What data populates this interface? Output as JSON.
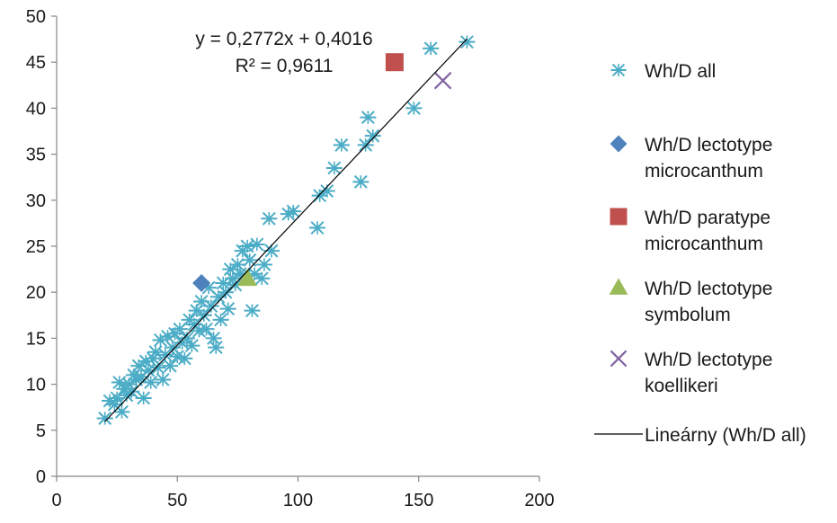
{
  "chart_data": {
    "type": "scatter",
    "title": "",
    "xlabel": "",
    "ylabel": "",
    "xlim": [
      0,
      200
    ],
    "ylim": [
      0,
      50
    ],
    "x_ticks": [
      "0",
      "50",
      "100",
      "150",
      "200"
    ],
    "y_ticks": [
      "0",
      "5",
      "10",
      "15",
      "20",
      "25",
      "30",
      "35",
      "40",
      "45",
      "50"
    ],
    "grid": false,
    "legend_position": "right",
    "series": [
      {
        "name": "Wh/D all",
        "marker": "asterisk",
        "color": "#4bacc6",
        "points": [
          [
            20,
            6.3
          ],
          [
            22,
            8.2
          ],
          [
            24,
            7.8
          ],
          [
            25,
            8.5
          ],
          [
            26,
            10.2
          ],
          [
            27,
            7.0
          ],
          [
            28,
            9.5
          ],
          [
            29,
            8.8
          ],
          [
            30,
            10.0
          ],
          [
            31,
            9.2
          ],
          [
            32,
            11.0
          ],
          [
            33,
            10.5
          ],
          [
            34,
            12.0
          ],
          [
            35,
            10.8
          ],
          [
            36,
            8.5
          ],
          [
            37,
            12.5
          ],
          [
            38,
            11.5
          ],
          [
            39,
            10.2
          ],
          [
            40,
            12.8
          ],
          [
            41,
            13.5
          ],
          [
            42,
            11.8
          ],
          [
            43,
            14.8
          ],
          [
            44,
            10.5
          ],
          [
            45,
            13.2
          ],
          [
            46,
            15.2
          ],
          [
            47,
            12.0
          ],
          [
            48,
            14.0
          ],
          [
            49,
            15.5
          ],
          [
            50,
            13.0
          ],
          [
            51,
            16.0
          ],
          [
            52,
            14.5
          ],
          [
            53,
            12.8
          ],
          [
            54,
            15.0
          ],
          [
            55,
            17.0
          ],
          [
            56,
            14.2
          ],
          [
            57,
            16.5
          ],
          [
            58,
            18.0
          ],
          [
            59,
            15.8
          ],
          [
            60,
            19.0
          ],
          [
            61,
            17.5
          ],
          [
            62,
            16.0
          ],
          [
            63,
            20.5
          ],
          [
            64,
            18.5
          ],
          [
            65,
            15.0
          ],
          [
            66,
            14.0
          ],
          [
            67,
            19.5
          ],
          [
            68,
            17.0
          ],
          [
            69,
            21.0
          ],
          [
            70,
            20.0
          ],
          [
            71,
            18.2
          ],
          [
            72,
            22.5
          ],
          [
            73,
            21.5
          ],
          [
            74,
            20.8
          ],
          [
            75,
            23.0
          ],
          [
            76,
            22.0
          ],
          [
            77,
            24.5
          ],
          [
            78,
            21.8
          ],
          [
            79,
            25.0
          ],
          [
            80,
            23.5
          ],
          [
            81,
            18.0
          ],
          [
            82,
            22.0
          ],
          [
            83,
            25.2
          ],
          [
            85,
            21.5
          ],
          [
            86,
            23.0
          ],
          [
            88,
            28.0
          ],
          [
            89,
            24.5
          ],
          [
            96,
            28.5
          ],
          [
            98,
            28.8
          ],
          [
            108,
            27.0
          ],
          [
            109,
            30.5
          ],
          [
            112,
            31.0
          ],
          [
            115,
            33.5
          ],
          [
            118,
            36.0
          ],
          [
            126,
            32.0
          ],
          [
            128,
            36.0
          ],
          [
            129,
            39.0
          ],
          [
            131,
            37.0
          ],
          [
            148,
            40.0
          ],
          [
            155,
            46.5
          ],
          [
            170,
            47.2
          ]
        ]
      },
      {
        "name": "Wh/D lectotype microcanthum",
        "marker": "diamond",
        "color": "#4f81bd",
        "points": [
          [
            60,
            21
          ]
        ]
      },
      {
        "name": "Wh/D paratype microcanthum",
        "marker": "square",
        "color": "#c0504d",
        "points": [
          [
            140,
            45
          ]
        ]
      },
      {
        "name": "Wh/D lectotype symbolum",
        "marker": "triangle",
        "color": "#9bbb59",
        "points": [
          [
            79,
            21.5
          ]
        ]
      },
      {
        "name": "Wh/D lectotype koellikeri",
        "marker": "x",
        "color": "#8064a2",
        "points": [
          [
            160,
            43
          ]
        ]
      }
    ],
    "trendline": {
      "name": "Lineárny (Wh/D all)",
      "slope": 0.2772,
      "intercept": 0.4016,
      "x_range": [
        20,
        170
      ],
      "color": "#000000",
      "equation_label": "y = 0,2772x + 0,4016",
      "r2_label": "R² = 0,9611"
    }
  },
  "legend": {
    "items": [
      {
        "lines": [
          "Wh/D all"
        ],
        "marker": "asterisk",
        "color": "#4bacc6"
      },
      {
        "lines": [
          "Wh/D lectotype",
          "microcanthum"
        ],
        "marker": "diamond",
        "color": "#4f81bd"
      },
      {
        "lines": [
          "Wh/D paratype",
          "microcanthum"
        ],
        "marker": "square",
        "color": "#c0504d"
      },
      {
        "lines": [
          "Wh/D lectotype",
          "symbolum"
        ],
        "marker": "triangle",
        "color": "#9bbb59"
      },
      {
        "lines": [
          "Wh/D lectotype",
          "koellikeri"
        ],
        "marker": "x",
        "color": "#8064a2"
      },
      {
        "lines": [
          "Lineárny (Wh/D all)"
        ],
        "marker": "line",
        "color": "#000000"
      }
    ]
  }
}
